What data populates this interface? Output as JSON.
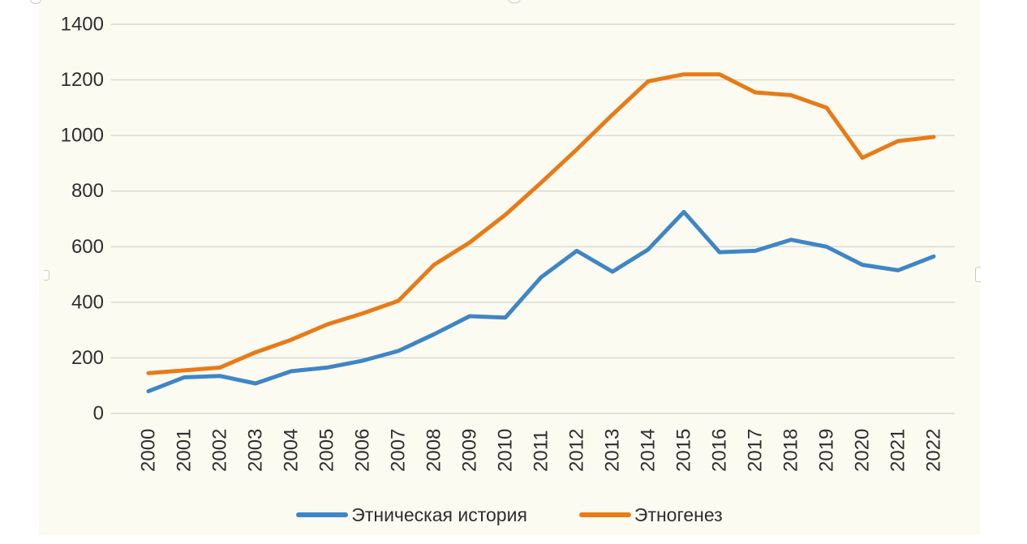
{
  "page": {
    "background": "#ffffff"
  },
  "chart": {
    "background": "#FCFBF2",
    "grid_color": "#D9D8D0",
    "tick_text_color": "#2e2e2e",
    "line_width": 5
  },
  "chart_data": {
    "type": "line",
    "title": "",
    "xlabel": "",
    "ylabel": "",
    "categories": [
      "2000",
      "2001",
      "2002",
      "2003",
      "2004",
      "2005",
      "2006",
      "2007",
      "2008",
      "2009",
      "2010",
      "2011",
      "2012",
      "2013",
      "2014",
      "2015",
      "2016",
      "2017",
      "2018",
      "2019",
      "2020",
      "2021",
      "2022"
    ],
    "series": [
      {
        "name": "Этническая история",
        "color": "#3E86C5",
        "values": [
          80,
          130,
          135,
          108,
          152,
          165,
          190,
          225,
          285,
          350,
          345,
          490,
          585,
          510,
          590,
          725,
          580,
          585,
          625,
          600,
          535,
          515,
          565
        ]
      },
      {
        "name": "Этногенез",
        "color": "#E87B17",
        "values": [
          145,
          155,
          165,
          220,
          265,
          320,
          360,
          405,
          535,
          615,
          715,
          830,
          950,
          1075,
          1195,
          1220,
          1220,
          1155,
          1145,
          1100,
          920,
          980,
          995
        ]
      }
    ],
    "ylim": [
      0,
      1400
    ],
    "yticks": [
      0,
      200,
      400,
      600,
      800,
      1000,
      1200,
      1400
    ],
    "grid": true,
    "legend_position": "bottom"
  }
}
